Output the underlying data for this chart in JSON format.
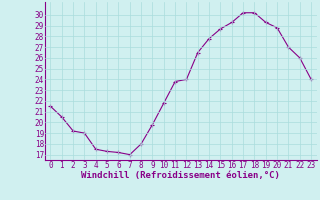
{
  "x": [
    0,
    1,
    2,
    3,
    4,
    5,
    6,
    7,
    8,
    9,
    10,
    11,
    12,
    13,
    14,
    15,
    16,
    17,
    18,
    19,
    20,
    21,
    22,
    23
  ],
  "y": [
    21.5,
    20.5,
    19.2,
    19.0,
    17.5,
    17.3,
    17.2,
    17.0,
    18.0,
    19.8,
    21.8,
    23.8,
    24.0,
    26.5,
    27.8,
    28.7,
    29.3,
    30.2,
    30.2,
    29.3,
    28.8,
    27.0,
    26.0,
    24.0
  ],
  "color": "#880088",
  "bg_color": "#d0f0f0",
  "grid_color": "#aadddd",
  "xlabel": "Windchill (Refroidissement éolien,°C)",
  "xlim": [
    -0.5,
    23.5
  ],
  "ylim": [
    16.5,
    31.2
  ],
  "yticks": [
    17,
    18,
    19,
    20,
    21,
    22,
    23,
    24,
    25,
    26,
    27,
    28,
    29,
    30
  ],
  "xticks": [
    0,
    1,
    2,
    3,
    4,
    5,
    6,
    7,
    8,
    9,
    10,
    11,
    12,
    13,
    14,
    15,
    16,
    17,
    18,
    19,
    20,
    21,
    22,
    23
  ],
  "axis_fontsize": 5.5,
  "label_fontsize": 6.5
}
